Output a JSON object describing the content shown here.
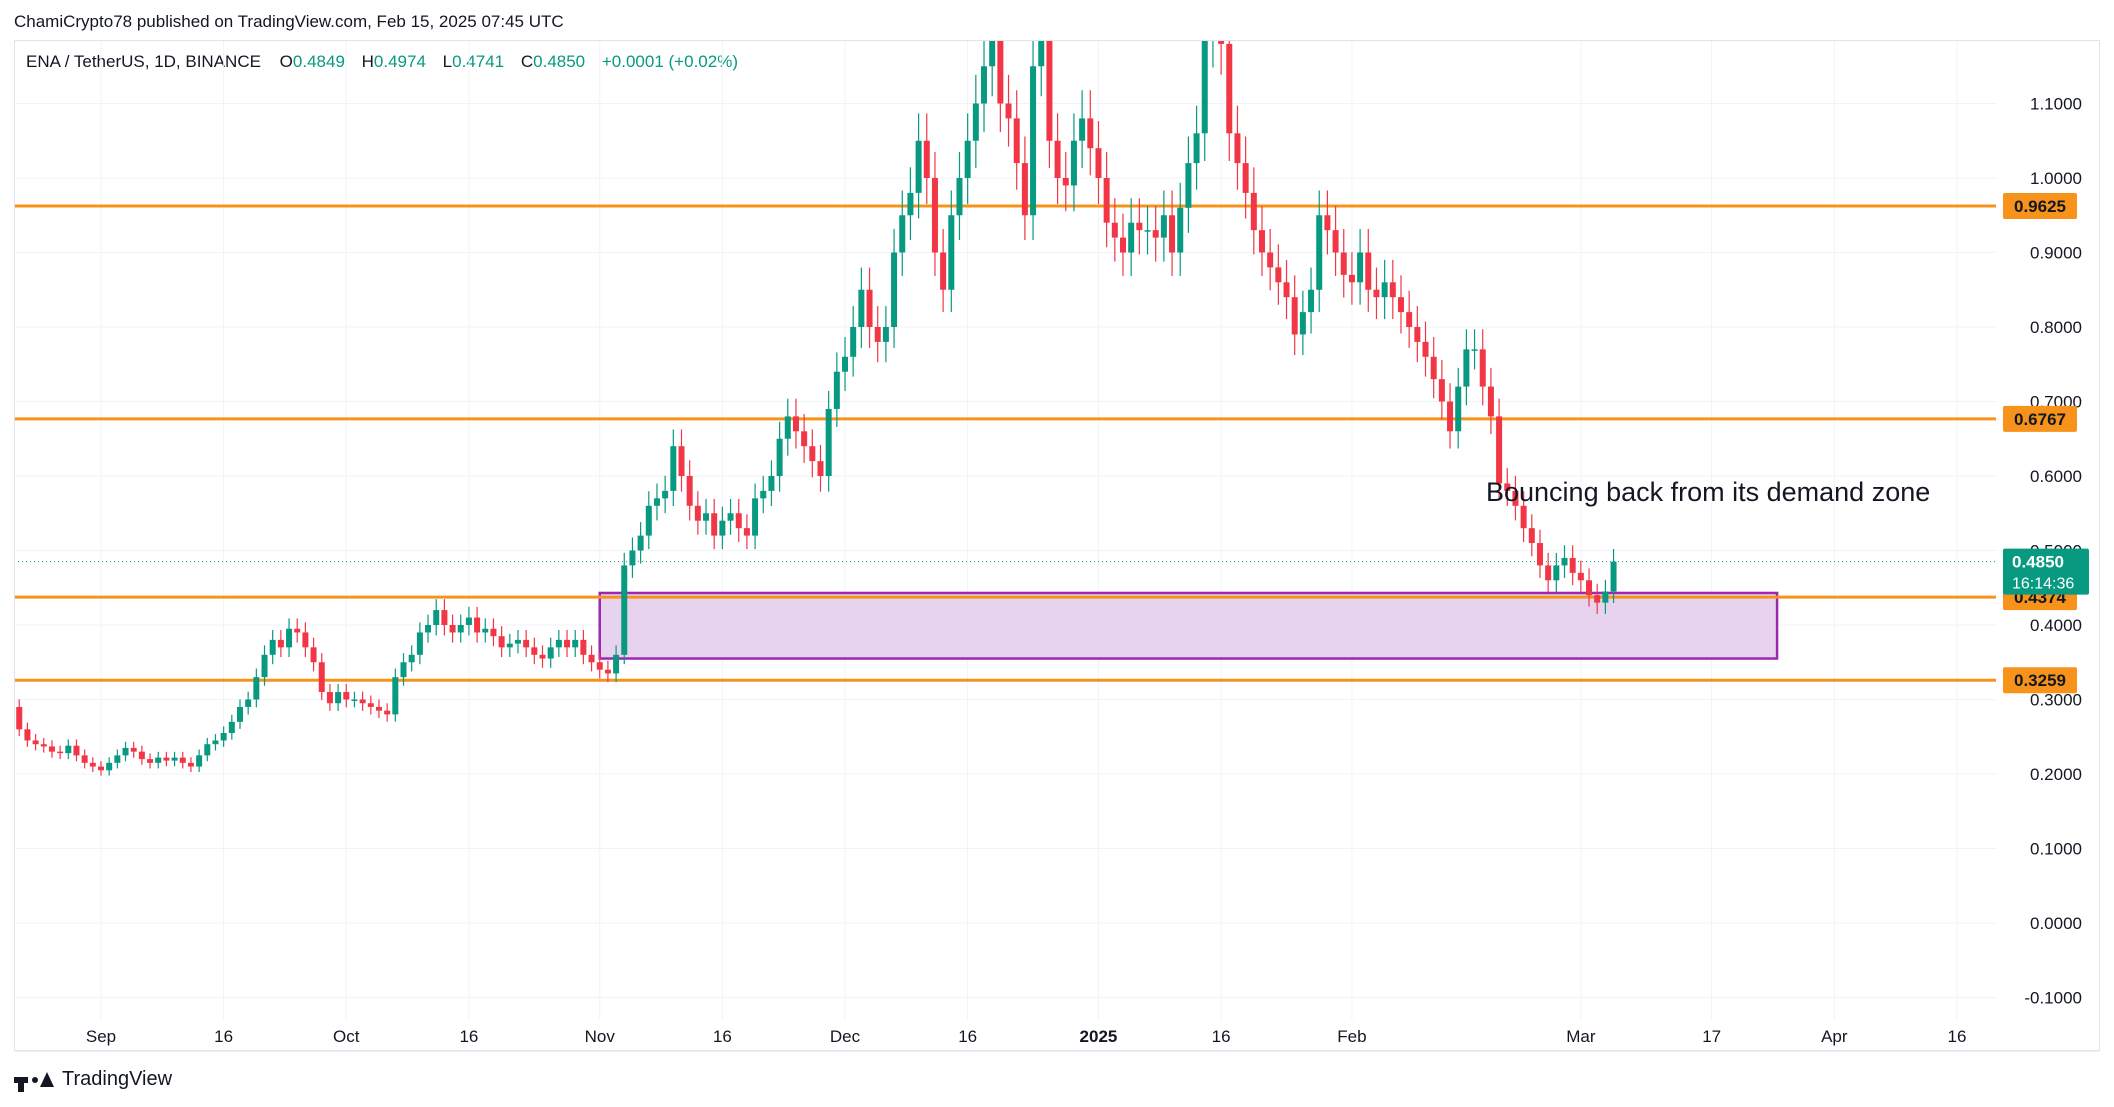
{
  "credit": "ChamiCrypto78 published on TradingView.com, Feb 15, 2025 07:45 UTC",
  "legend": {
    "symbol": "ENA / TetherUS, 1D, BINANCE",
    "o_label": "O",
    "o_value": "0.4849",
    "h_label": "H",
    "h_value": "0.4974",
    "l_label": "L",
    "l_value": "0.4741",
    "c_label": "C",
    "c_value": "0.4850",
    "change": "+0.0001 (+0.02%)"
  },
  "annotation": "Bouncing back from its demand zone",
  "brand": "TradingView",
  "colors": {
    "up": "#089981",
    "down": "#f23645",
    "level": "#f7931a",
    "zone_fill": "#e8d3ef",
    "zone_border": "#9c27b0",
    "grid": "#f0f3fa"
  },
  "chart_data": {
    "type": "candlestick",
    "y_ticks": [
      "1.1000",
      "1.0000",
      "0.9000",
      "0.8000",
      "0.7000",
      "0.6000",
      "0.5000",
      "0.4000",
      "0.3000",
      "0.2000",
      "0.1000",
      "0.0000",
      "-0.1000"
    ],
    "y_tick_values": [
      1.1,
      1.0,
      0.9,
      0.8,
      0.7,
      0.6,
      0.5,
      0.4,
      0.3,
      0.2,
      0.1,
      0.0,
      -0.1
    ],
    "x_labels": [
      "Sep",
      "16",
      "Oct",
      "16",
      "Nov",
      "16",
      "Dec",
      "16",
      "2025",
      "16",
      "Feb",
      "Mar",
      "17",
      "Apr",
      "16"
    ],
    "x_label_dates": [
      "2024-09-01",
      "2024-09-16",
      "2024-10-01",
      "2024-10-16",
      "2024-11-01",
      "2024-11-16",
      "2024-12-01",
      "2024-12-16",
      "2025-01-01",
      "2025-01-16",
      "2025-02-01",
      "2025-03-01",
      "2025-03-17",
      "2025-04-01",
      "2025-04-16"
    ],
    "horizontal_levels": [
      {
        "label": "0.9625",
        "value": 0.9625
      },
      {
        "label": "0.6767",
        "value": 0.6767
      },
      {
        "label": "0.4374",
        "value": 0.4374
      },
      {
        "label": "0.3259",
        "value": 0.3259
      }
    ],
    "current_price": {
      "label": "0.4850",
      "value": 0.485,
      "countdown": "16:14:36"
    },
    "demand_zone": {
      "start": "2024-11-01",
      "end": "2025-03-25",
      "top": 0.443,
      "bottom": 0.355
    },
    "candles_start": "2024-08-16",
    "close_prices": [
      0.315,
      0.36,
      0.38,
      0.355,
      0.33,
      0.29,
      0.26,
      0.245,
      0.24,
      0.237,
      0.23,
      0.228,
      0.238,
      0.225,
      0.215,
      0.21,
      0.205,
      0.215,
      0.225,
      0.235,
      0.23,
      0.22,
      0.215,
      0.222,
      0.218,
      0.222,
      0.215,
      0.21,
      0.225,
      0.24,
      0.245,
      0.255,
      0.27,
      0.29,
      0.3,
      0.33,
      0.36,
      0.38,
      0.37,
      0.395,
      0.39,
      0.37,
      0.35,
      0.31,
      0.295,
      0.31,
      0.3,
      0.3,
      0.295,
      0.29,
      0.285,
      0.28,
      0.33,
      0.35,
      0.36,
      0.39,
      0.4,
      0.42,
      0.4,
      0.39,
      0.4,
      0.41,
      0.39,
      0.395,
      0.385,
      0.37,
      0.375,
      0.38,
      0.37,
      0.36,
      0.355,
      0.37,
      0.38,
      0.37,
      0.38,
      0.36,
      0.35,
      0.34,
      0.335,
      0.36,
      0.48,
      0.5,
      0.52,
      0.56,
      0.57,
      0.58,
      0.64,
      0.6,
      0.56,
      0.54,
      0.55,
      0.52,
      0.54,
      0.55,
      0.53,
      0.52,
      0.57,
      0.58,
      0.6,
      0.65,
      0.68,
      0.66,
      0.64,
      0.62,
      0.6,
      0.69,
      0.74,
      0.76,
      0.8,
      0.85,
      0.8,
      0.78,
      0.8,
      0.9,
      0.95,
      0.98,
      1.05,
      1.0,
      0.9,
      0.85,
      0.95,
      1.0,
      1.05,
      1.1,
      1.15,
      1.2,
      1.1,
      1.08,
      1.02,
      0.95,
      1.15,
      1.2,
      1.05,
      1.0,
      0.99,
      1.05,
      1.08,
      1.04,
      1.0,
      0.94,
      0.92,
      0.9,
      0.94,
      0.93,
      0.93,
      0.92,
      0.95,
      0.9,
      0.96,
      1.02,
      1.06,
      1.19,
      1.2,
      1.18,
      1.06,
      1.02,
      0.98,
      0.93,
      0.9,
      0.88,
      0.86,
      0.84,
      0.79,
      0.82,
      0.85,
      0.95,
      0.93,
      0.9,
      0.87,
      0.86,
      0.9,
      0.85,
      0.84,
      0.86,
      0.84,
      0.82,
      0.8,
      0.78,
      0.76,
      0.73,
      0.7,
      0.66,
      0.72,
      0.77,
      0.77,
      0.72,
      0.68,
      0.59,
      0.58,
      0.56,
      0.53,
      0.51,
      0.48,
      0.46,
      0.48,
      0.49,
      0.47,
      0.46,
      0.44,
      0.43,
      0.445,
      0.485
    ]
  }
}
